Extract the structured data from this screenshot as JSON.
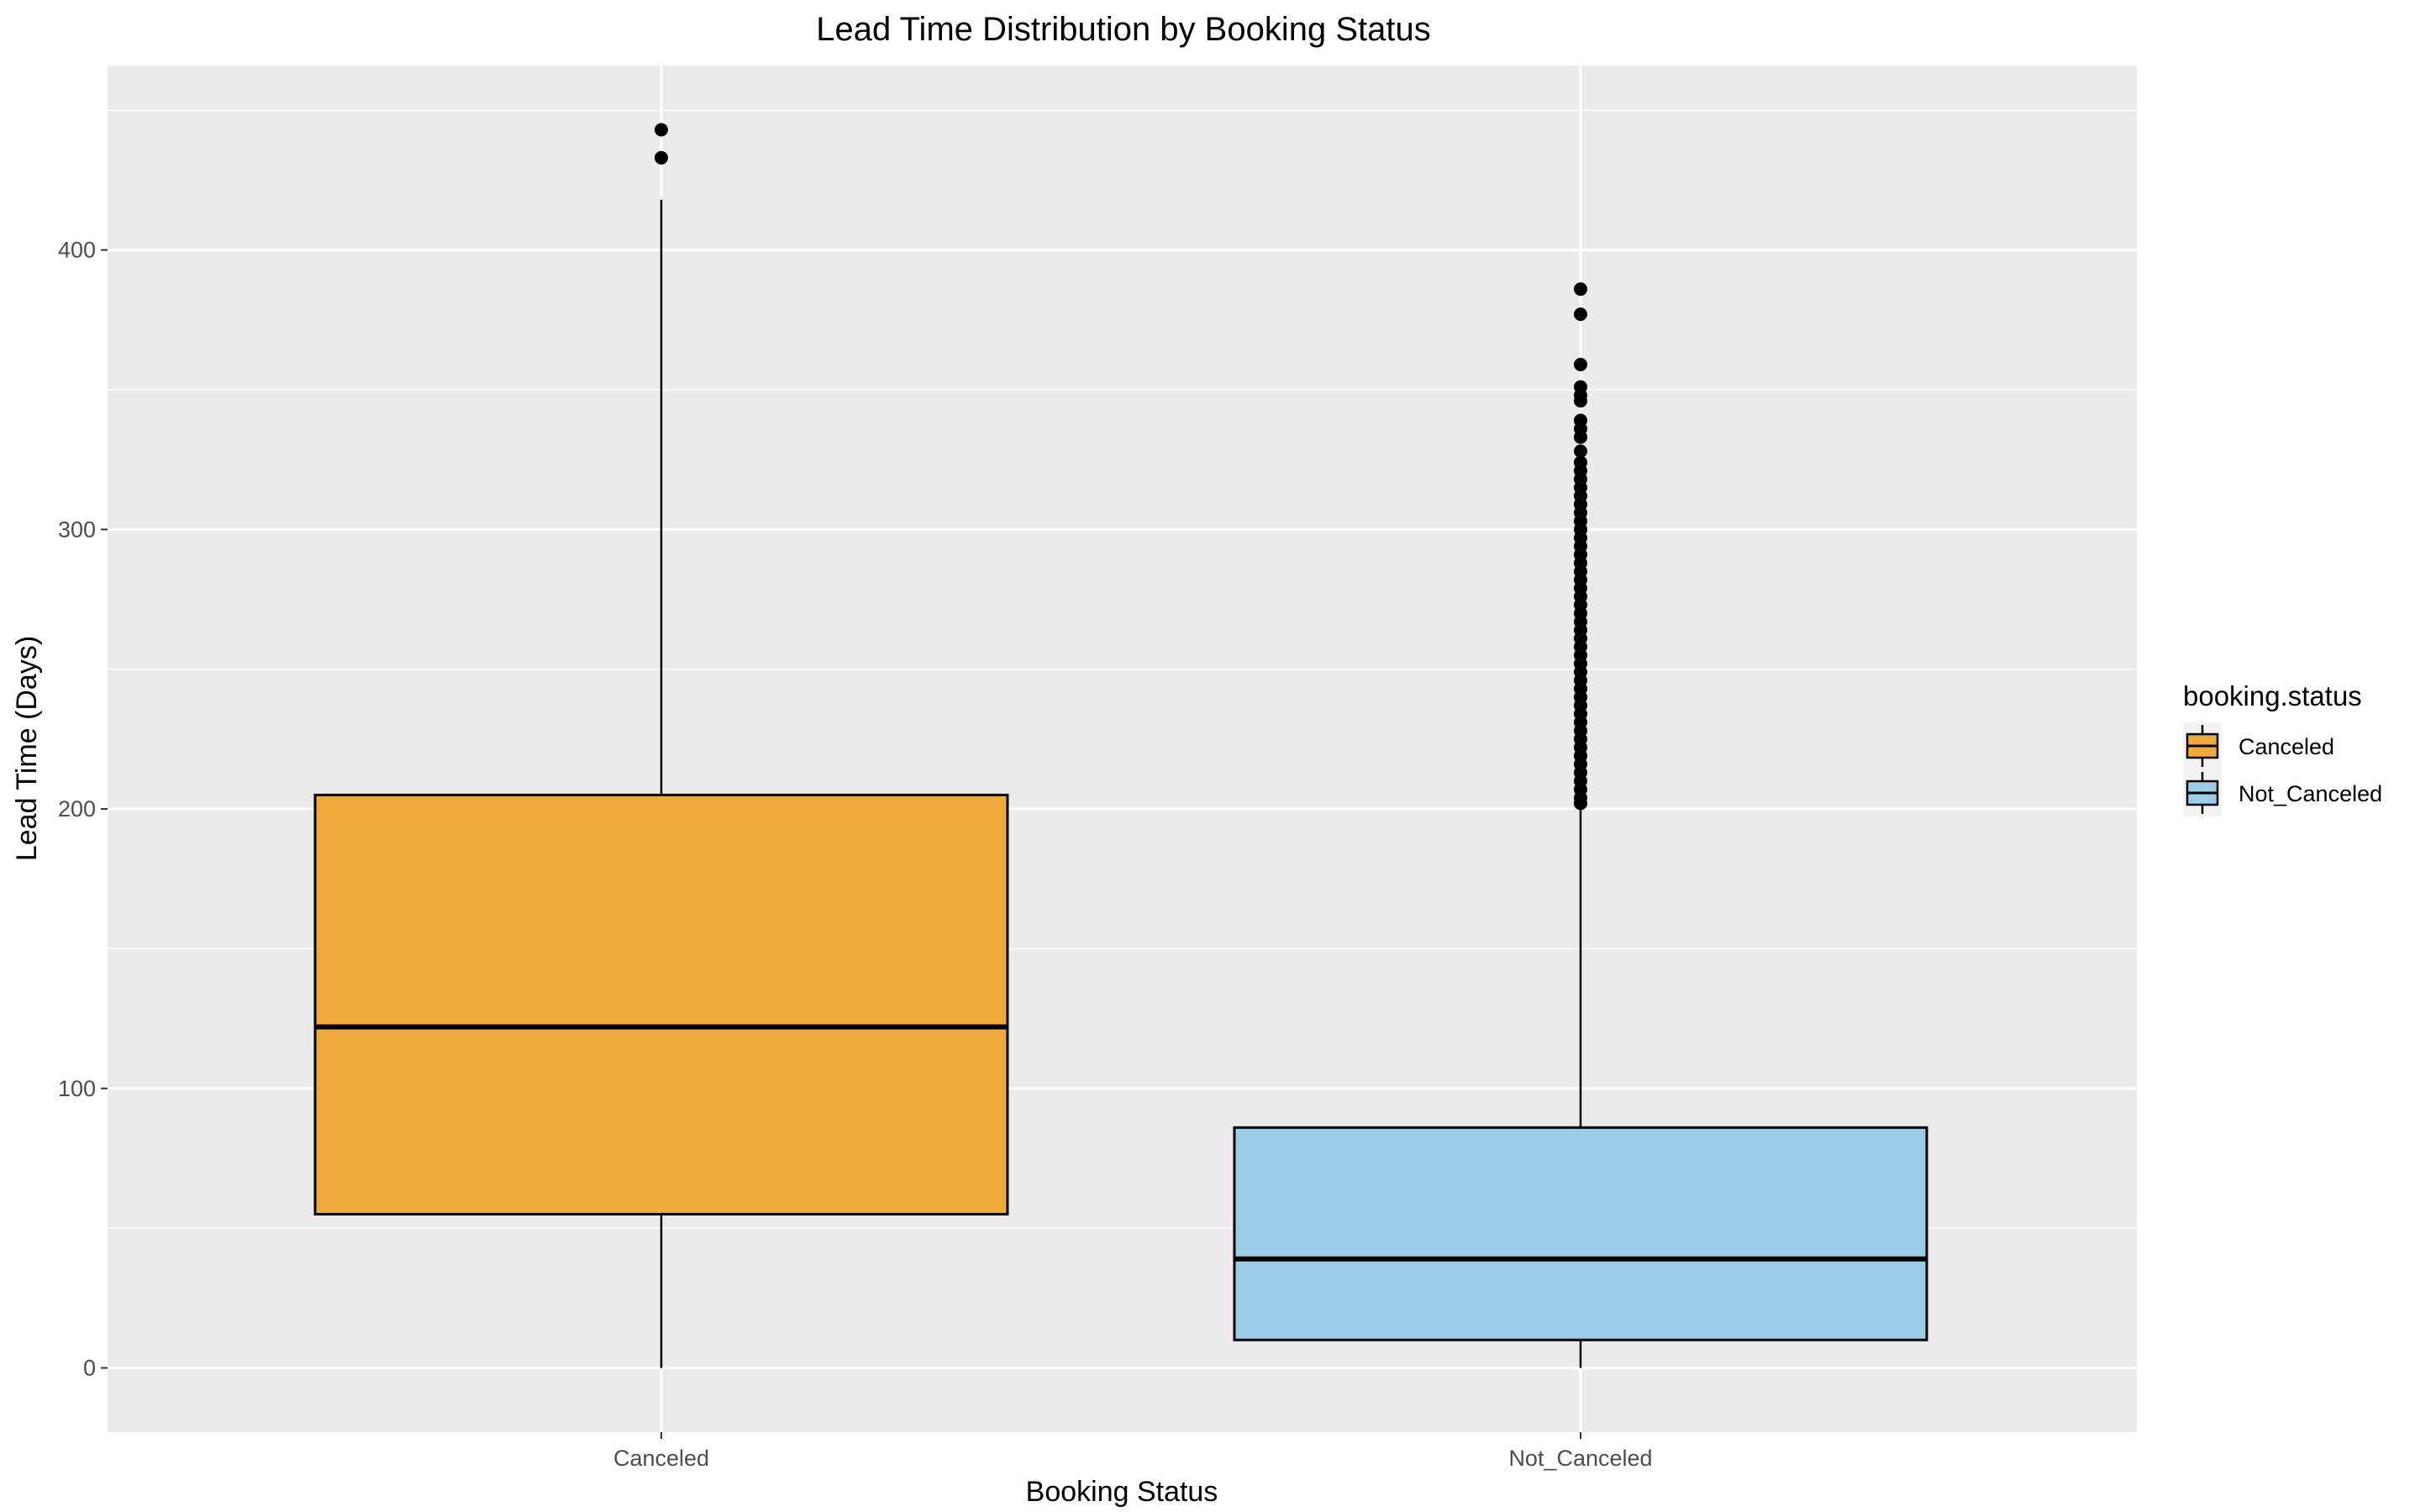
{
  "chart_data": {
    "type": "boxplot",
    "title": "Lead Time Distribution by Booking Status",
    "xlabel": "Booking Status",
    "ylabel": "Lead Time (Days)",
    "categories": [
      "Canceled",
      "Not_Canceled"
    ],
    "ylim": [
      -23,
      466
    ],
    "yticks": [
      0,
      100,
      200,
      300,
      400
    ],
    "grid": true,
    "legend": {
      "title": "booking.status",
      "placement": "right",
      "entries": [
        "Canceled",
        "Not_Canceled"
      ]
    },
    "colors": {
      "Canceled": "#f0aa3c",
      "Not_Canceled": "#99cde8",
      "panel": "#ebebeb",
      "grid": "#ffffff"
    },
    "series": [
      {
        "category": "Canceled",
        "min": 0,
        "q1": 55,
        "median": 122,
        "q3": 205,
        "whisker_high": 418,
        "outliers": [
          433,
          443
        ]
      },
      {
        "category": "Not_Canceled",
        "min": 0,
        "q1": 10,
        "median": 39,
        "q3": 86,
        "whisker_high": 200,
        "outliers": [
          386,
          377,
          359,
          351,
          348,
          346,
          339,
          336,
          333,
          328,
          324,
          321,
          318,
          315,
          312,
          309,
          306,
          303,
          300,
          297,
          294,
          291,
          288,
          285,
          282,
          279,
          276,
          273,
          270,
          267,
          264,
          261,
          258,
          255,
          252,
          249,
          246,
          243,
          240,
          237,
          234,
          231,
          228,
          225,
          222,
          219,
          216,
          213,
          210,
          207,
          204,
          202
        ]
      }
    ]
  }
}
